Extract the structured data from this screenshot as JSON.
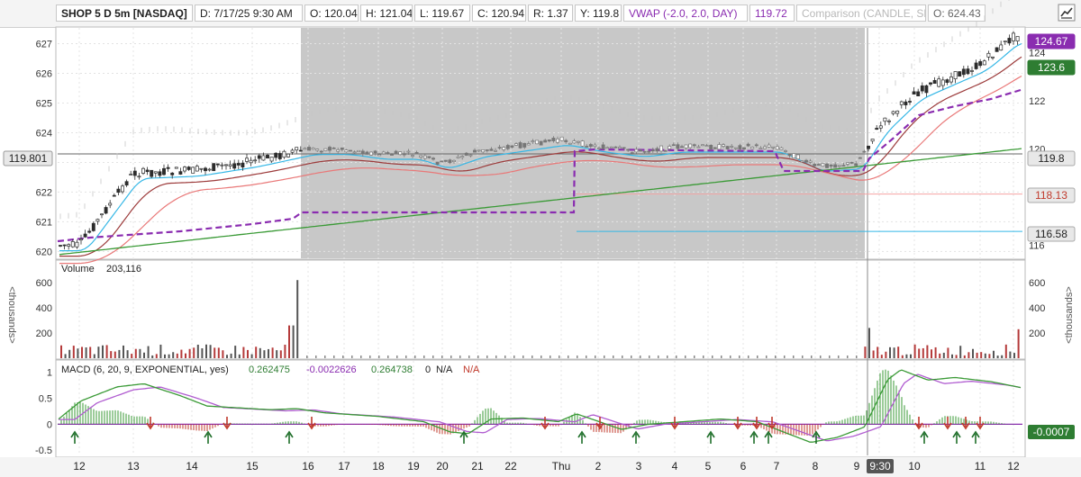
{
  "header": {
    "symbol": "SHOP 5 D 5m [NASDAQ]",
    "date": "D: 7/17/25 9:30 AM",
    "open": "O: 120.04",
    "high": "H: 121.04",
    "low": "L: 119.67",
    "close": "C: 120.94",
    "range": "R: 1.37",
    "y": "Y: 119.8",
    "vwap_label": "VWAP (-2.0, 2.0, DAY)",
    "vwap_value": "119.72",
    "comparison": "Comparison (CANDLE, SPY)",
    "comp_open": "O: 624.43"
  },
  "colors": {
    "shade": "#c8c8c8",
    "candle": "#2c2c2c",
    "ma_cyan": "#35b7e6",
    "ma_maroon": "#9c3a3a",
    "ma_red": "#e97878",
    "ma_green": "#3a9a36",
    "vwap": "#8a2cb0",
    "volume": "#b53a3a",
    "macd": "#3a9a36",
    "signal": "#b05cd0",
    "arrow_up": "#1f6f2a",
    "arrow_down": "#c0392b"
  },
  "main_panel": {
    "left_axis_ticks": [
      "627",
      "626",
      "625",
      "624",
      "623",
      "622",
      "621",
      "620"
    ],
    "right_axis_ticks": [
      "124",
      "122",
      "120",
      "118",
      "116"
    ],
    "badges": [
      {
        "text": "124.67",
        "color": "#8a2cb0"
      },
      {
        "text": "123.6",
        "color": "#2e7d32"
      },
      {
        "text": "119.8",
        "color": "#e8e8e8"
      },
      {
        "text": "118.13",
        "color": "#e8e8e8"
      },
      {
        "text": "116.58",
        "color": "#e8e8e8"
      }
    ],
    "left_badge": "119.801"
  },
  "volume_panel": {
    "label": "Volume",
    "value": "203,116",
    "left_ticks": [
      "600",
      "400",
      "200"
    ],
    "right_ticks": [
      "600",
      "400",
      "200"
    ],
    "unit": "<thousands>"
  },
  "macd_panel": {
    "label": "MACD (6, 20, 9, EXPONENTIAL, yes)",
    "value": "0.262475",
    "avg": "-0.0022626",
    "diff": "0.264738",
    "zero": "0",
    "na1": "N/A",
    "na2": "N/A",
    "ticks": [
      "1",
      "0.5",
      "0",
      "-0.5"
    ],
    "badge": "-0.0007"
  },
  "x_axis": {
    "labels": [
      "12",
      "13",
      "14",
      "15",
      "16",
      "17",
      "18",
      "19",
      "20",
      "21",
      "22",
      "Thu",
      "2",
      "3",
      "4",
      "5",
      "6",
      "7",
      "8",
      "9",
      "9:30",
      "10",
      "11",
      "12"
    ]
  },
  "chart_data": {
    "type": "candlestick",
    "title": "SHOP 5 D 5m [NASDAQ]",
    "right_axis_range": [
      115.5,
      125
    ],
    "left_axis_range": [
      619.8,
      627.5
    ],
    "price_key_levels": [
      {
        "label": "124.67",
        "value": 124.67
      },
      {
        "label": "123.6",
        "value": 123.6
      },
      {
        "label": "119.8",
        "value": 119.8
      },
      {
        "label": "118.13",
        "value": 118.13
      },
      {
        "label": "116.58",
        "value": 116.58
      }
    ],
    "price_series": [
      {
        "x": "12",
        "y": 116.0
      },
      {
        "x": "13",
        "y": 119.0
      },
      {
        "x": "14",
        "y": 119.1
      },
      {
        "x": "15",
        "y": 119.5
      },
      {
        "x": "16",
        "y": 120.0
      },
      {
        "x": "17",
        "y": 120.0
      },
      {
        "x": "18",
        "y": 119.8
      },
      {
        "x": "19",
        "y": 119.8
      },
      {
        "x": "20",
        "y": 119.4
      },
      {
        "x": "21",
        "y": 119.9
      },
      {
        "x": "22",
        "y": 120.1
      },
      {
        "x": "Thu",
        "y": 120.4
      },
      {
        "x": "2",
        "y": 120.1
      },
      {
        "x": "3",
        "y": 119.9
      },
      {
        "x": "4",
        "y": 120.1
      },
      {
        "x": "5",
        "y": 120.1
      },
      {
        "x": "6",
        "y": 120.1
      },
      {
        "x": "7",
        "y": 120.1
      },
      {
        "x": "8",
        "y": 119.3
      },
      {
        "x": "9",
        "y": 119.4
      },
      {
        "x": "9:30",
        "y": 120.9
      },
      {
        "x": "10",
        "y": 122.3
      },
      {
        "x": "11",
        "y": 123.5
      },
      {
        "x": "12",
        "y": 124.67
      }
    ],
    "volume_series": [
      {
        "x": "15",
        "y": 680
      },
      {
        "x": "9:30",
        "y": 240
      },
      {
        "x": "12",
        "y": 230
      }
    ],
    "macd_arrows_down": [
      "13",
      "14.5",
      "16",
      "Thu",
      "2",
      "4.5",
      "7",
      "7.3",
      "7.5",
      "10.5",
      "11",
      "11.3",
      "11.5"
    ],
    "macd_arrows_up": [
      "12",
      "14",
      "16",
      "20.5",
      "Thu",
      "3",
      "5",
      "7.2",
      "7.5",
      "9",
      "10.5",
      "11.5",
      "12"
    ]
  }
}
